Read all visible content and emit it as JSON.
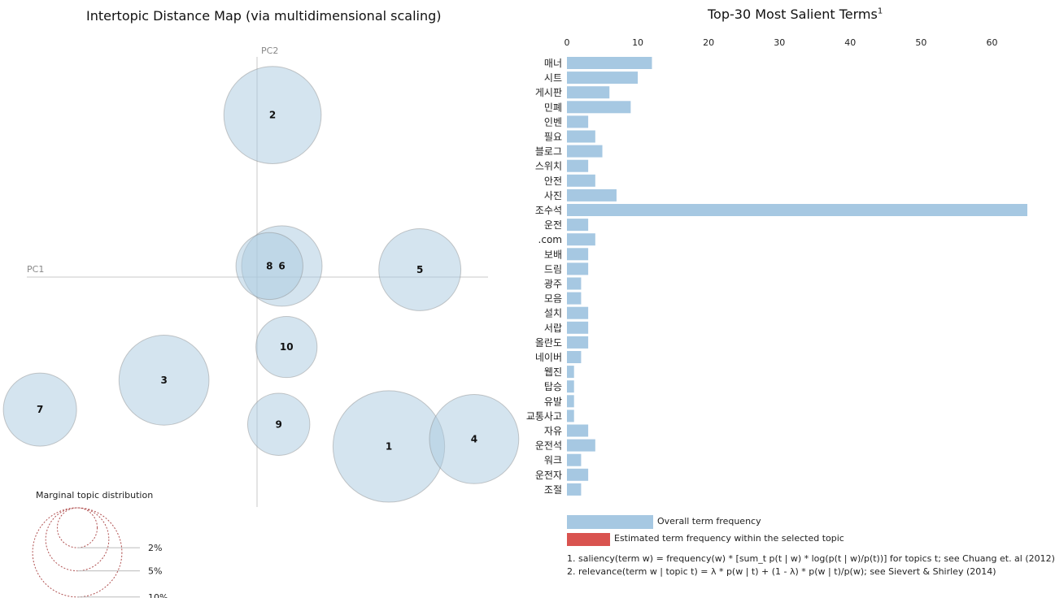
{
  "left_title": "Intertopic Distance Map (via multidimensional scaling)",
  "right_title": "Top-30 Most Salient Terms",
  "right_title_sup": "1",
  "axis_labels": {
    "pc1": "PC1",
    "pc2": "PC2"
  },
  "marginal": {
    "title": "Marginal topic distribution",
    "labels": [
      "2%",
      "5%",
      "10%"
    ]
  },
  "legend": {
    "overall": "Overall term frequency",
    "estimated": "Estimated term frequency within the selected topic"
  },
  "footnotes": [
    "1. saliency(term w) = frequency(w) * [sum_t p(t | w) * log(p(t | w)/p(t))] for topics t; see Chuang et. al (2012)",
    "2. relevance(term w | topic t) = λ * p(w | t) + (1 - λ) * p(w | t)/p(w); see Sievert & Shirley (2014)"
  ],
  "colors": {
    "bubble_fill": "#a9c9e0",
    "bubble_stroke": "#8a8a8a",
    "bar_overall": "#a6c8e2",
    "bar_topic": "#d9534f",
    "axis_line": "#c8c8c8"
  },
  "chart_data": [
    {
      "type": "scatter",
      "title": "Intertopic Distance Map (via multidimensional scaling)",
      "xlabel": "PC1",
      "ylabel": "PC2",
      "xlim": [
        -0.32,
        0.32
      ],
      "ylim": [
        -0.32,
        0.32
      ],
      "topics": [
        {
          "id": "1",
          "x": 0.17,
          "y": -0.23,
          "size": 10.0
        },
        {
          "id": "2",
          "x": 0.02,
          "y": 0.22,
          "size": 7.6
        },
        {
          "id": "3",
          "x": -0.12,
          "y": -0.14,
          "size": 6.5
        },
        {
          "id": "4",
          "x": 0.28,
          "y": -0.22,
          "size": 6.4
        },
        {
          "id": "5",
          "x": 0.21,
          "y": 0.01,
          "size": 5.4
        },
        {
          "id": "6",
          "x": 0.032,
          "y": 0.015,
          "size": 5.2
        },
        {
          "id": "7",
          "x": -0.28,
          "y": -0.18,
          "size": 4.3
        },
        {
          "id": "8",
          "x": 0.016,
          "y": 0.015,
          "size": 3.6
        },
        {
          "id": "9",
          "x": 0.028,
          "y": -0.2,
          "size": 3.1
        },
        {
          "id": "10",
          "x": 0.038,
          "y": -0.095,
          "size": 3.0
        }
      ]
    },
    {
      "type": "bar",
      "orientation": "horizontal",
      "title": "Top-30 Most Salient Terms",
      "xlim": [
        0,
        65
      ],
      "xticks": [
        0,
        10,
        20,
        30,
        40,
        50,
        60
      ],
      "categories": [
        "매너",
        "시트",
        "게시판",
        "민폐",
        "인벤",
        "필요",
        "블로그",
        "스위치",
        "안전",
        "사진",
        "조수석",
        "운전",
        ".com",
        "보배",
        "드림",
        "광주",
        "모음",
        "설치",
        "서랍",
        "올란도",
        "네이버",
        "웹진",
        "탑승",
        "유발",
        "교통사고",
        "자유",
        "운전석",
        "워크",
        "운전자",
        "조절"
      ],
      "values": [
        12,
        10,
        6,
        9,
        3,
        4,
        5,
        3,
        4,
        7,
        65,
        3,
        4,
        3,
        3,
        2,
        2,
        3,
        3,
        3,
        2,
        1,
        1,
        1,
        1,
        3,
        4,
        2,
        3,
        2
      ]
    }
  ]
}
